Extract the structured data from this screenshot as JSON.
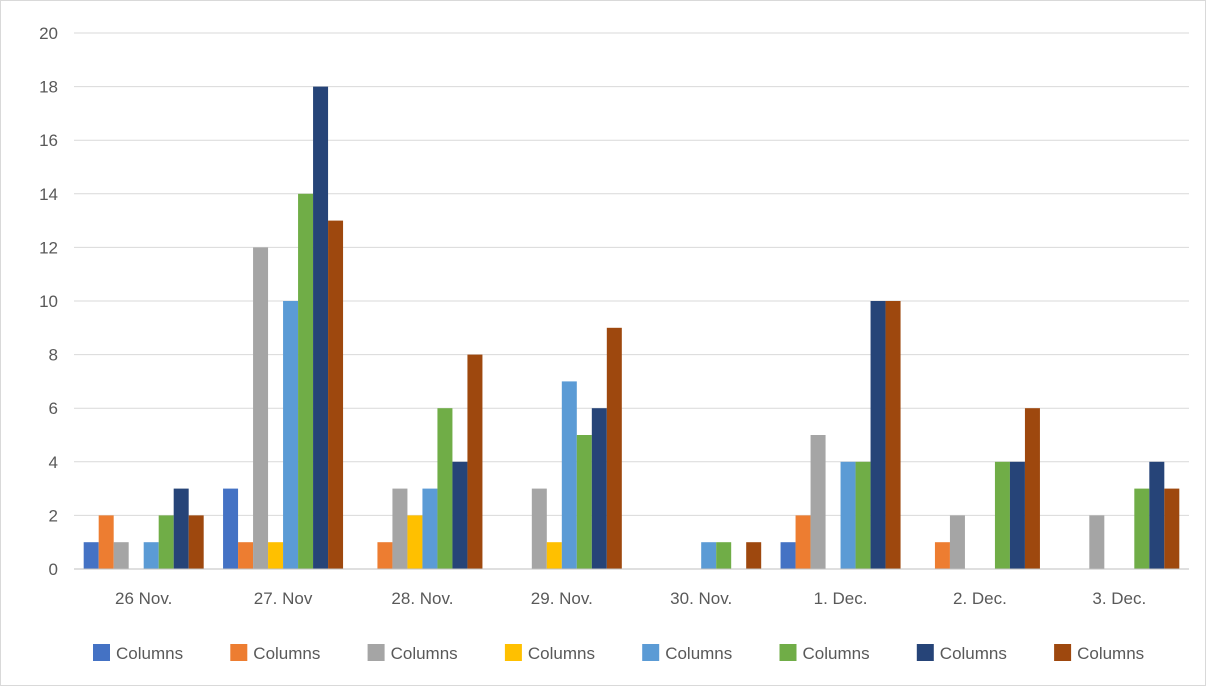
{
  "chart_data": {
    "type": "bar",
    "categories": [
      "26 Nov.",
      "27. Nov",
      "28. Nov.",
      "29. Nov.",
      "30. Nov.",
      "1. Dec.",
      "2. Dec.",
      "3. Dec."
    ],
    "yticks": [
      "0",
      "2",
      "4",
      "6",
      "8",
      "10",
      "12",
      "14",
      "16",
      "18",
      "20"
    ],
    "ylim": [
      0,
      20
    ],
    "grid": true,
    "legend_position": "bottom",
    "series": [
      {
        "name": "Columns",
        "color": "#4472c4",
        "values": [
          1,
          3,
          0,
          0,
          0,
          1,
          0,
          0
        ]
      },
      {
        "name": "Columns",
        "color": "#ed7d31",
        "values": [
          2,
          1,
          1,
          0,
          0,
          2,
          1,
          0
        ]
      },
      {
        "name": "Columns",
        "color": "#a5a5a5",
        "values": [
          1,
          12,
          3,
          3,
          0,
          5,
          2,
          2
        ]
      },
      {
        "name": "Columns",
        "color": "#ffc000",
        "values": [
          0,
          1,
          2,
          1,
          0,
          0,
          0,
          0
        ]
      },
      {
        "name": "Columns",
        "color": "#5b9bd5",
        "values": [
          1,
          10,
          3,
          7,
          1,
          4,
          0,
          0
        ]
      },
      {
        "name": "Columns",
        "color": "#70ad47",
        "values": [
          2,
          14,
          6,
          5,
          1,
          4,
          4,
          3
        ]
      },
      {
        "name": "Columns",
        "color": "#264478",
        "values": [
          3,
          18,
          4,
          6,
          0,
          10,
          4,
          4
        ]
      },
      {
        "name": "Columns",
        "color": "#9e480e",
        "values": [
          2,
          13,
          8,
          9,
          1,
          10,
          6,
          3
        ]
      }
    ]
  }
}
